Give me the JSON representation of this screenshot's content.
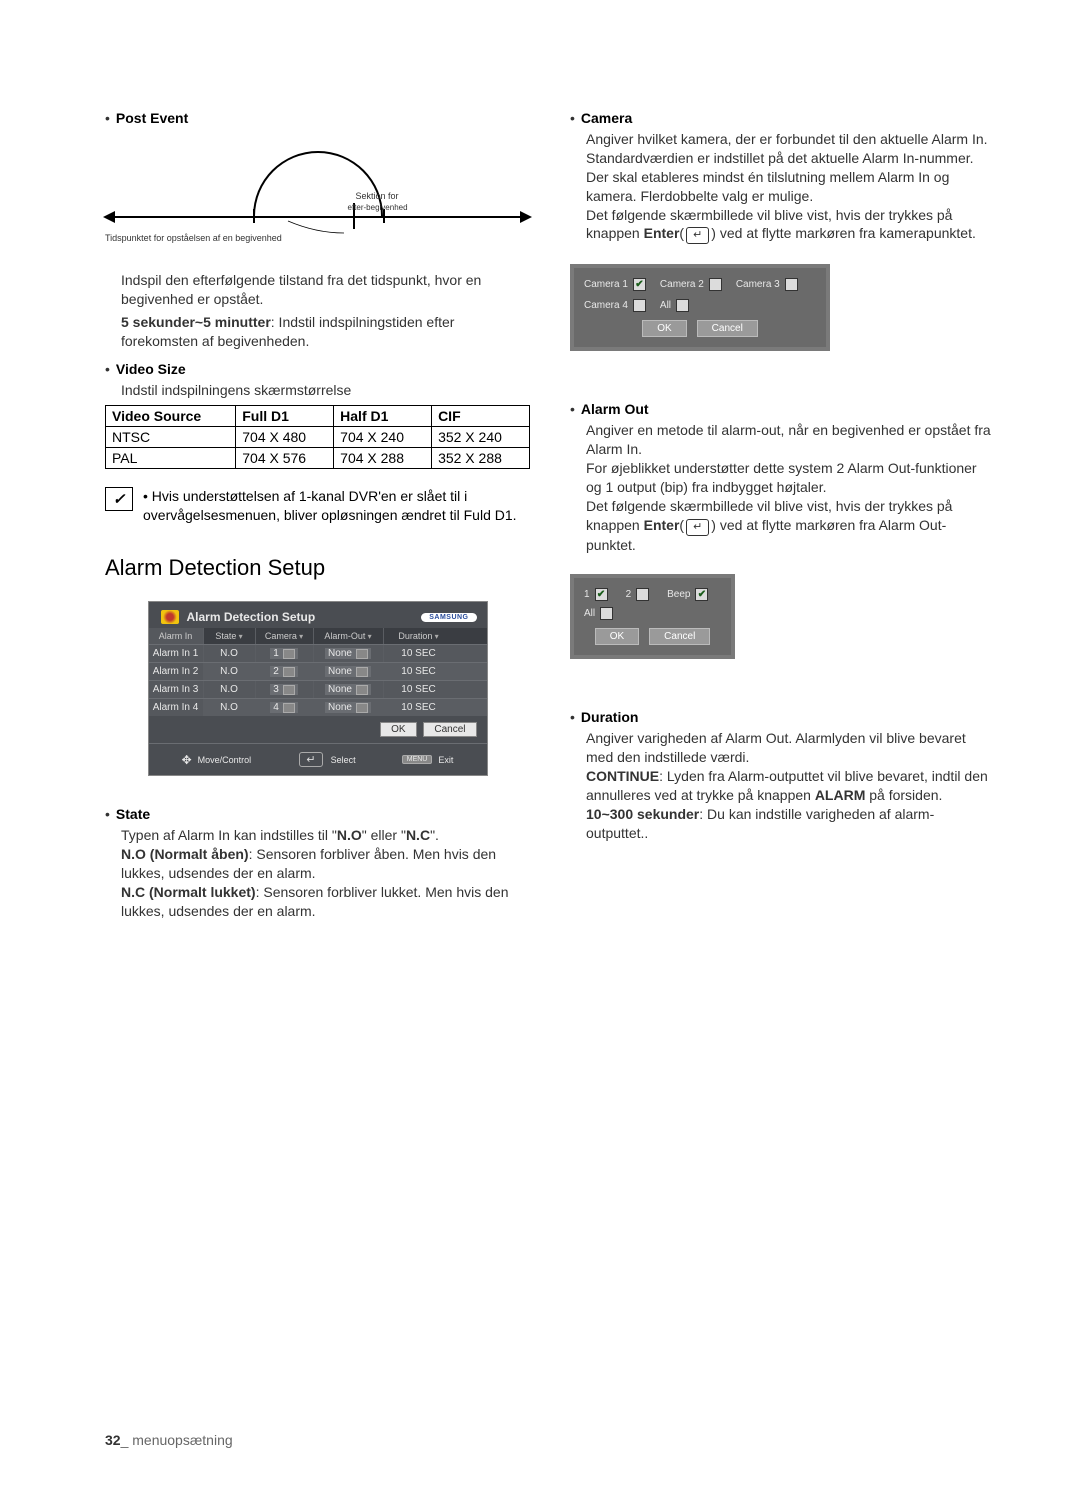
{
  "left": {
    "post_event": {
      "title": "Post Event",
      "label_left": "Tidspunktet for opståelsen af en begivenhed",
      "label_top": "Sektion for",
      "label_bottom": "efter-begivenhed",
      "text1": "Indspil den efterfølgende tilstand fra det tidspunkt, hvor en begivenhed er opstået.",
      "bold1": "5 sekunder~5 minutter",
      "text2": ": Indstil indspilningstiden efter forekomsten af begivenheden."
    },
    "video_size": {
      "title": "Video Size",
      "sub": "Indstil indspilningens skærmstørrelse",
      "headers": [
        "Video Source",
        "Full D1",
        "Half D1",
        "CIF"
      ],
      "rows": [
        [
          "NTSC",
          "704 X 480",
          "704 X 240",
          "352 X 240"
        ],
        [
          "PAL",
          "704 X 576",
          "704 X 288",
          "352 X 288"
        ]
      ]
    },
    "note": "Hvis understøttelsen af 1-kanal DVR'en er slået til i overvågelsesmenuen, bliver opløsningen ændret til Fuld D1.",
    "ads": {
      "heading": "Alarm Detection Setup",
      "dialog_title": "Alarm Detection Setup",
      "brand": "SAMSUNG",
      "cols": [
        "Alarm In",
        "State",
        "Camera",
        "Alarm-Out",
        "Duration"
      ],
      "rows": [
        [
          "Alarm In 1",
          "N.O",
          "1",
          "None",
          "10 SEC"
        ],
        [
          "Alarm In 2",
          "N.O",
          "2",
          "None",
          "10 SEC"
        ],
        [
          "Alarm In 3",
          "N.O",
          "3",
          "None",
          "10 SEC"
        ],
        [
          "Alarm In 4",
          "N.O",
          "4",
          "None",
          "10 SEC"
        ]
      ],
      "ok": "OK",
      "cancel": "Cancel",
      "move": "Move/Control",
      "select": "Select",
      "menu": "MENU",
      "exit": "Exit"
    },
    "state": {
      "title": "State",
      "l1a": "Typen af Alarm In kan indstilles til \"",
      "l1b": "N.O",
      "l1c": "\" eller \"",
      "l1d": "N.C",
      "l1e": "\".",
      "no_b": "N.O (Normalt åben)",
      "no_t": ": Sensoren forbliver åben. Men hvis den lukkes, udsendes der en alarm.",
      "nc_b": "N.C (Normalt lukket)",
      "nc_t": ": Sensoren forbliver lukket. Men hvis den lukkes, udsendes der en alarm."
    }
  },
  "right": {
    "camera": {
      "title": "Camera",
      "p1": "Angiver hvilket kamera, der er forbundet til den aktuelle Alarm In. Standardværdien er indstillet på det aktuelle Alarm In-nummer.",
      "p2": "Der skal etableres mindst én tilslutning mellem Alarm In og kamera. Flerdobbelte valg er mulige.",
      "p3a": "Det følgende skærmbillede vil blive vist, hvis der trykkes på knappen ",
      "enter": "Enter",
      "p3b": " ved at flytte markøren fra kamerapunktet.",
      "opts": [
        {
          "label": "Camera 1",
          "checked": true
        },
        {
          "label": "Camera 2",
          "checked": false
        },
        {
          "label": "Camera 3",
          "checked": false
        },
        {
          "label": "Camera 4",
          "checked": false
        },
        {
          "label": "All",
          "checked": false
        }
      ],
      "ok": "OK",
      "cancel": "Cancel"
    },
    "alarm_out": {
      "title": "Alarm Out",
      "p1": "Angiver en metode til alarm-out, når en begivenhed er opstået fra Alarm In.",
      "p2": "For øjeblikket understøtter dette system 2 Alarm Out-funktioner og 1 output (bip) fra indbygget højtaler.",
      "p3a": "Det følgende skærmbillede vil blive vist, hvis der trykkes på knappen ",
      "enter": "Enter",
      "p3b": " ved at flytte markøren fra Alarm Out-punktet.",
      "opts": [
        {
          "label": "1",
          "checked": true
        },
        {
          "label": "2",
          "checked": false
        },
        {
          "label": "Beep",
          "checked": true
        },
        {
          "label": "All",
          "checked": false
        }
      ],
      "ok": "OK",
      "cancel": "Cancel"
    },
    "duration": {
      "title": "Duration",
      "p1": "Angiver varigheden af Alarm Out. Alarmlyden vil blive bevaret med den indstillede værdi.",
      "cont_b": "CONTINUE",
      "cont_t": ": Lyden fra Alarm-outputtet vil blive bevaret, indtil den annulleres ved at trykke på knappen ",
      "alarm_b": "ALARM",
      "alarm_t": " på forsiden.",
      "sec_b": "10~300 sekunder",
      "sec_t": ": Du kan indstille varigheden af alarm-outputtet.."
    }
  },
  "footer": {
    "page": "32",
    "label": "_ menuopsætning"
  },
  "enter_symbol": "↵"
}
